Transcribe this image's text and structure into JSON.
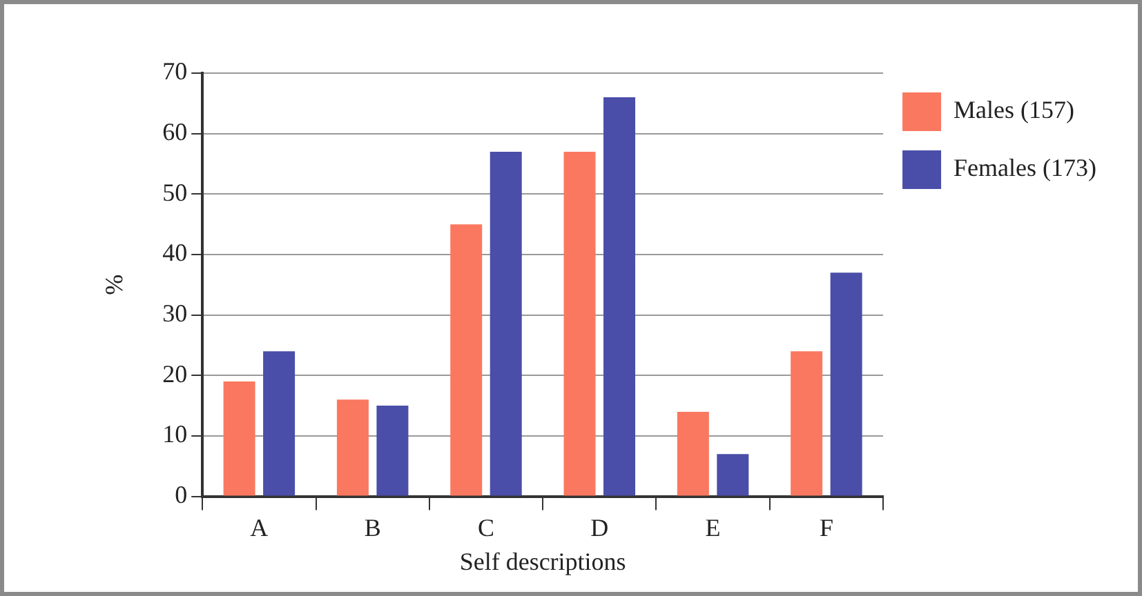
{
  "chart_data": {
    "type": "bar",
    "xlabel": "Self descriptions",
    "ylabel": "%",
    "categories": [
      "A",
      "B",
      "C",
      "D",
      "E",
      "F"
    ],
    "series": [
      {
        "name": "Males (157)",
        "color": "#fa7860",
        "values": [
          19,
          16,
          45,
          57,
          14,
          24
        ]
      },
      {
        "name": "Females (173)",
        "color": "#4a4ea8",
        "values": [
          24,
          15,
          57,
          66,
          7,
          37
        ]
      }
    ],
    "ylim": [
      0,
      70
    ],
    "yticks": [
      0,
      10,
      20,
      30,
      40,
      50,
      60,
      70
    ],
    "grid": "y",
    "legend": "top right"
  }
}
